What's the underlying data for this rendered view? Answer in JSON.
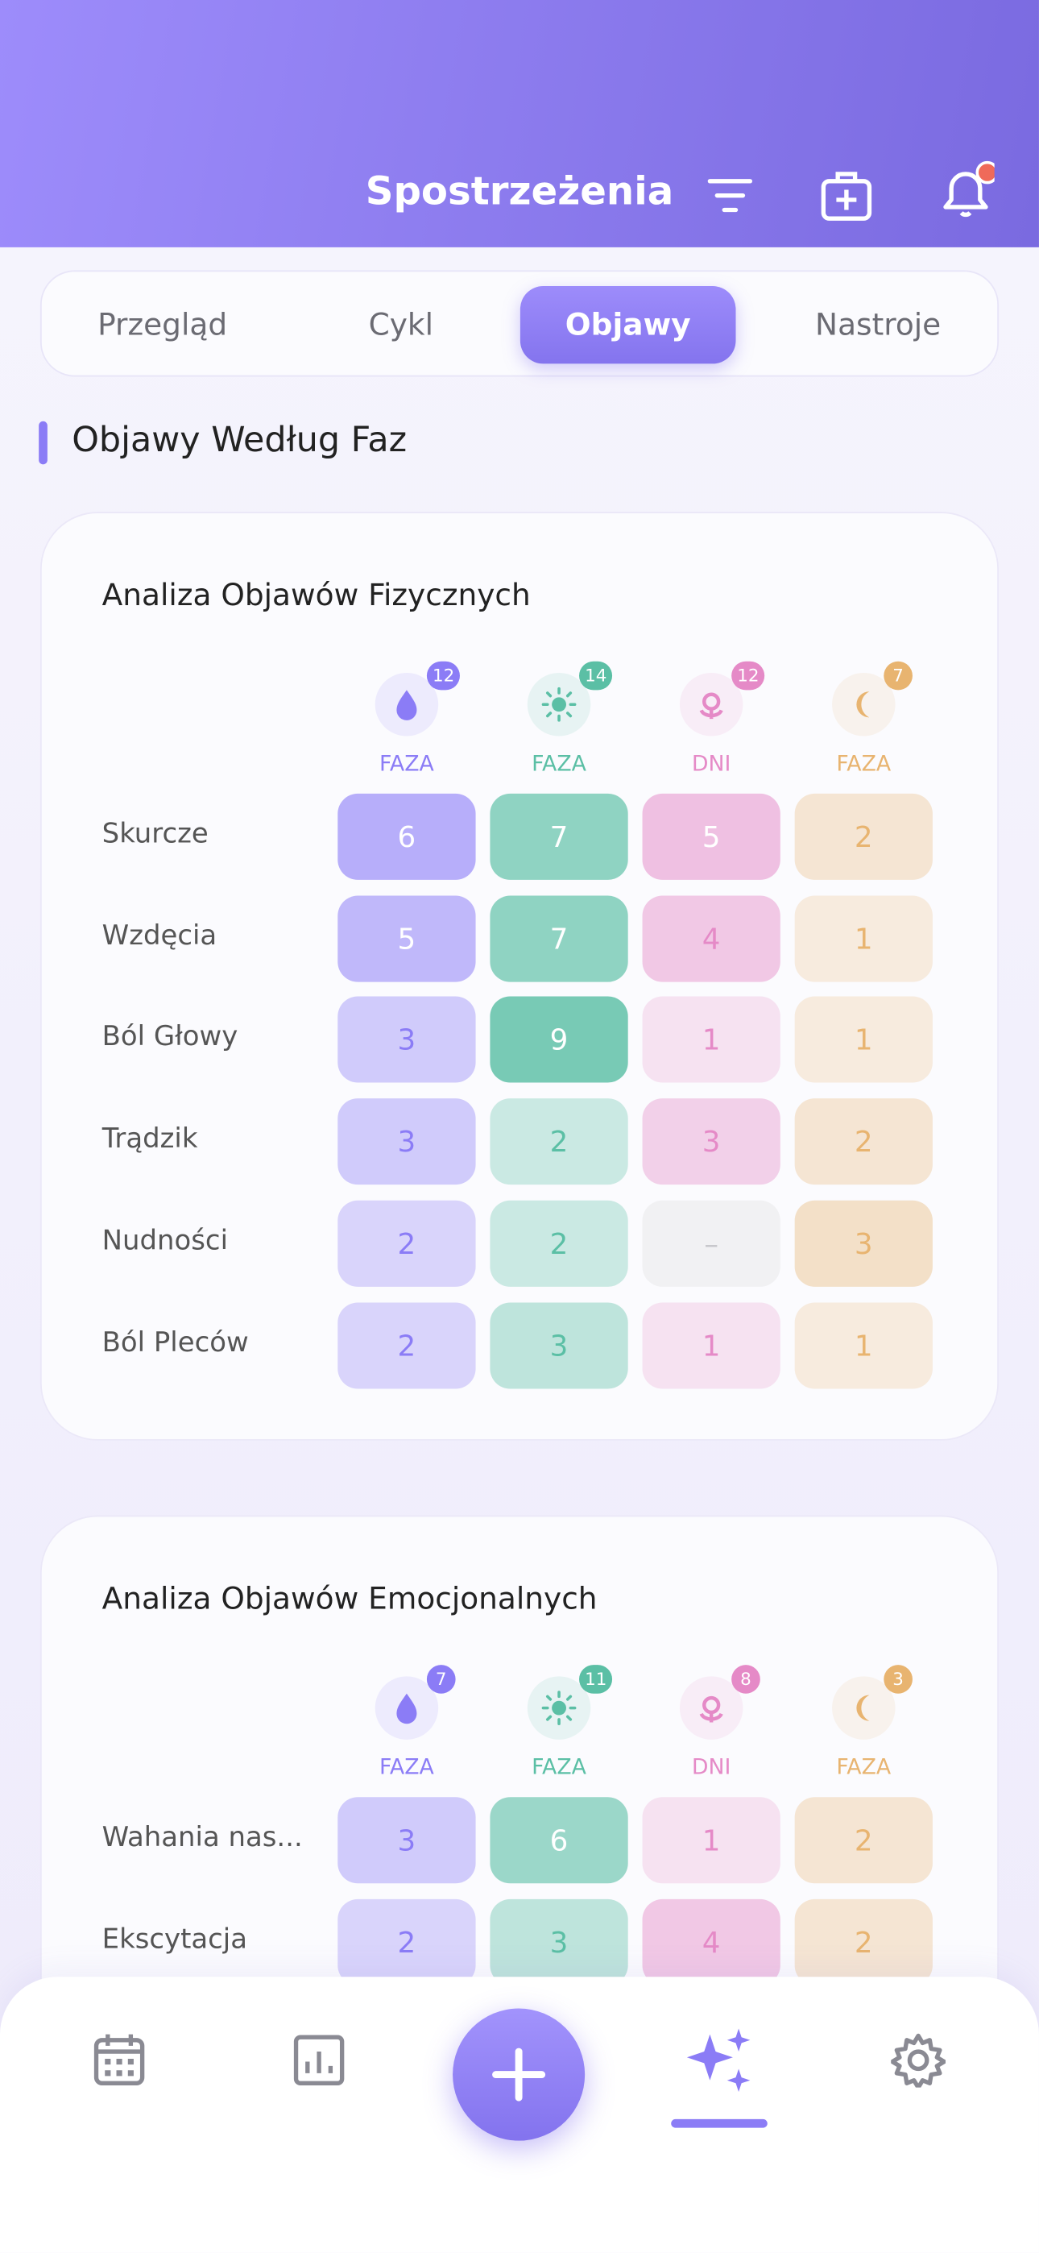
{
  "header": {
    "title": "Spostrzeżenia"
  },
  "tabs": [
    "Przegląd",
    "Cykl",
    "Objawy",
    "Nastroje"
  ],
  "active_tab": 2,
  "section_title": "Objawy Według Faz",
  "cards": [
    {
      "title": "Analiza Objawów Fizycznych",
      "columns": [
        {
          "label": "FAZA",
          "count": "12"
        },
        {
          "label": "FAZA",
          "count": "14"
        },
        {
          "label": "DNI",
          "count": "12"
        },
        {
          "label": "FAZA",
          "count": "7"
        }
      ],
      "rows": [
        {
          "label": "Skurcze",
          "values": [
            "6",
            "7",
            "5",
            "2"
          ]
        },
        {
          "label": "Wzdęcia",
          "values": [
            "5",
            "7",
            "4",
            "1"
          ]
        },
        {
          "label": "Ból Głowy",
          "values": [
            "3",
            "9",
            "1",
            "1"
          ]
        },
        {
          "label": "Trądzik",
          "values": [
            "3",
            "2",
            "3",
            "2"
          ]
        },
        {
          "label": "Nudności",
          "values": [
            "2",
            "2",
            "–",
            "3"
          ]
        },
        {
          "label": "Ból Pleców",
          "values": [
            "2",
            "3",
            "1",
            "1"
          ]
        }
      ]
    },
    {
      "title": "Analiza Objawów Emocjonalnych",
      "columns": [
        {
          "label": "FAZA",
          "count": "7"
        },
        {
          "label": "FAZA",
          "count": "11"
        },
        {
          "label": "DNI",
          "count": "8"
        },
        {
          "label": "FAZA",
          "count": "3"
        }
      ],
      "rows": [
        {
          "label": "Wahania nas...",
          "values": [
            "3",
            "6",
            "1",
            "2"
          ]
        },
        {
          "label": "Ekscytacja",
          "values": [
            "2",
            "3",
            "4",
            "2"
          ]
        }
      ]
    }
  ]
}
